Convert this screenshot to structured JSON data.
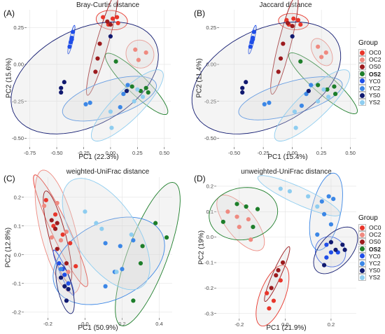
{
  "legend": {
    "title": "Group",
    "groups": [
      {
        "name": "OC0",
        "color": "#e8362b",
        "bold": false
      },
      {
        "name": "OC2",
        "color": "#ef8a80",
        "bold": false
      },
      {
        "name": "OS0",
        "color": "#9c1b1e",
        "bold": false
      },
      {
        "name": "OS2",
        "color": "#1d7e2a",
        "bold": true
      },
      {
        "name": "YC0",
        "color": "#1f4ee8",
        "bold": false
      },
      {
        "name": "YC2",
        "color": "#3c87e6",
        "bold": false
      },
      {
        "name": "YS0",
        "color": "#111a70",
        "bold": false
      },
      {
        "name": "YS2",
        "color": "#8ecdf0",
        "bold": false
      }
    ]
  },
  "chart_data": [
    {
      "type": "scatter",
      "panel_label": "(A)",
      "title": "Bray-Curtis distance",
      "xlabel": "PC1 (22.3%)",
      "ylabel": "PC2 (15.6%)",
      "xlim": [
        -0.78,
        0.56
      ],
      "ylim": [
        -0.56,
        0.37
      ],
      "xticks": [
        -0.75,
        -0.5,
        -0.25,
        0.0,
        0.25,
        0.5
      ],
      "xtick_labels": [
        "-0.75",
        "-0.50",
        "-0.25",
        "0.00",
        "0.25",
        "0.50"
      ],
      "yticks": [
        -0.5,
        -0.25,
        0.0,
        0.25
      ],
      "ytick_labels": [
        "-0.50",
        "-0.25",
        "0.00",
        "0.25"
      ],
      "series": [
        {
          "name": "OC0",
          "points": [
            [
              -0.07,
              0.32
            ],
            [
              0.02,
              0.31
            ],
            [
              0.06,
              0.32
            ],
            [
              0.07,
              0.28
            ],
            [
              -0.02,
              0.27
            ]
          ]
        },
        {
          "name": "OC2",
          "points": [
            [
              0.23,
              0.1
            ],
            [
              0.33,
              0.08
            ],
            [
              0.26,
              0.03
            ]
          ]
        },
        {
          "name": "OS0",
          "points": [
            [
              -0.03,
              0.29
            ],
            [
              0.0,
              0.27
            ],
            [
              -0.1,
              0.14
            ],
            [
              -0.12,
              0.04
            ],
            [
              -0.14,
              -0.05
            ]
          ]
        },
        {
          "name": "OS2",
          "points": [
            [
              0.05,
              0.02
            ],
            [
              0.2,
              -0.15
            ],
            [
              0.28,
              -0.18
            ],
            [
              0.33,
              -0.16
            ],
            [
              0.35,
              -0.19
            ]
          ]
        },
        {
          "name": "YC0",
          "points": [
            [
              -0.35,
              0.22
            ],
            [
              -0.36,
              0.18
            ],
            [
              -0.37,
              0.15
            ],
            [
              -0.38,
              0.12
            ],
            [
              -0.36,
              0.17
            ]
          ]
        },
        {
          "name": "YC2",
          "points": [
            [
              -0.23,
              -0.27
            ],
            [
              -0.19,
              -0.26
            ],
            [
              0.09,
              -0.29
            ],
            [
              0.12,
              -0.2
            ],
            [
              0.16,
              -0.14
            ]
          ]
        },
        {
          "name": "YS0",
          "points": [
            [
              -0.46,
              -0.16
            ],
            [
              -0.46,
              -0.19
            ],
            [
              -0.43,
              -0.12
            ],
            [
              0.0,
              0.19
            ],
            [
              0.15,
              -0.18
            ]
          ]
        },
        {
          "name": "YS2",
          "points": [
            [
              0.0,
              -0.32
            ],
            [
              0.01,
              -0.43
            ],
            [
              0.22,
              -0.25
            ],
            [
              0.25,
              -0.17
            ],
            [
              0.3,
              -0.22
            ]
          ]
        }
      ]
    },
    {
      "type": "scatter",
      "panel_label": "(B)",
      "title": "Jaccard distance",
      "xlabel": "PC1 (15.4%)",
      "ylabel": "PC2 (11.4%)",
      "xlim": [
        -0.63,
        0.55
      ],
      "ylim": [
        -0.56,
        0.37
      ],
      "xticks": [
        -0.5,
        -0.25,
        0.0,
        0.25,
        0.5
      ],
      "xtick_labels": [
        "-0.50",
        "-0.25",
        "0.00",
        "0.25",
        "0.50"
      ],
      "yticks": [
        -0.5,
        -0.25,
        0.0,
        0.25
      ],
      "ytick_labels": [
        "-0.50",
        "-0.25",
        "0.00",
        "0.25"
      ],
      "series": [
        {
          "name": "OC0",
          "points": [
            [
              -0.05,
              0.3
            ],
            [
              0.01,
              0.31
            ],
            [
              0.05,
              0.3
            ],
            [
              0.07,
              0.27
            ],
            [
              -0.03,
              0.27
            ]
          ]
        },
        {
          "name": "OC2",
          "points": [
            [
              0.22,
              0.12
            ],
            [
              0.29,
              0.08
            ],
            [
              0.25,
              0.05
            ]
          ]
        },
        {
          "name": "OS0",
          "points": [
            [
              -0.04,
              0.28
            ],
            [
              0.0,
              0.26
            ],
            [
              -0.08,
              0.14
            ],
            [
              -0.1,
              0.04
            ],
            [
              -0.12,
              -0.05
            ]
          ]
        },
        {
          "name": "OS2",
          "points": [
            [
              0.07,
              0.02
            ],
            [
              0.22,
              -0.14
            ],
            [
              0.3,
              -0.17
            ],
            [
              0.36,
              -0.15
            ],
            [
              0.37,
              -0.2
            ]
          ]
        },
        {
          "name": "YC0",
          "points": [
            [
              -0.33,
              0.22
            ],
            [
              -0.34,
              0.18
            ],
            [
              -0.35,
              0.15
            ],
            [
              -0.36,
              0.12
            ],
            [
              -0.34,
              0.17
            ]
          ]
        },
        {
          "name": "YC2",
          "points": [
            [
              -0.24,
              -0.27
            ],
            [
              -0.2,
              -0.26
            ],
            [
              0.08,
              -0.28
            ],
            [
              0.12,
              -0.2
            ],
            [
              0.16,
              -0.14
            ]
          ]
        },
        {
          "name": "YS0",
          "points": [
            [
              -0.43,
              -0.16
            ],
            [
              -0.43,
              -0.19
            ],
            [
              -0.4,
              -0.12
            ],
            [
              0.0,
              0.19
            ],
            [
              0.14,
              -0.18
            ]
          ]
        },
        {
          "name": "YS2",
          "points": [
            [
              0.02,
              -0.32
            ],
            [
              0.03,
              -0.43
            ],
            [
              0.22,
              -0.25
            ],
            [
              0.27,
              -0.17
            ],
            [
              0.31,
              -0.22
            ]
          ]
        }
      ]
    },
    {
      "type": "scatter",
      "panel_label": "(C)",
      "title": "weighted-UniFrac distance",
      "xlabel": "PC1 (50.9%)",
      "ylabel": "PC2 (12.8%)",
      "xlim": [
        -0.33,
        0.47
      ],
      "ylim": [
        -0.22,
        0.27
      ],
      "xticks": [
        -0.2,
        0.0,
        0.2,
        0.4
      ],
      "xtick_labels": [
        "-0.2",
        "0.0",
        "0.2",
        "0.4"
      ],
      "yticks": [
        -0.2,
        -0.1,
        0.0,
        0.1,
        0.2
      ],
      "ytick_labels": [
        "-0.2",
        "-0.1",
        "0.0",
        "0.1",
        "0.2"
      ],
      "series": [
        {
          "name": "OC0",
          "points": [
            [
              -0.21,
              0.19
            ],
            [
              -0.16,
              0.14
            ],
            [
              -0.17,
              0.1
            ],
            [
              -0.12,
              0.07
            ],
            [
              -0.08,
              0.04
            ],
            [
              -0.05,
              -0.04
            ]
          ]
        },
        {
          "name": "OC2",
          "points": [
            [
              -0.22,
              0.17
            ],
            [
              -0.15,
              0.18
            ],
            [
              -0.1,
              0.08
            ],
            [
              -0.18,
              0.06
            ],
            [
              -0.13,
              0.05
            ],
            [
              -0.09,
              -0.06
            ]
          ]
        },
        {
          "name": "OS0",
          "points": [
            [
              -0.18,
              0.12
            ],
            [
              -0.15,
              0.11
            ],
            [
              -0.16,
              0.09
            ],
            [
              -0.15,
              0.02
            ],
            [
              -0.1,
              -0.03
            ]
          ]
        },
        {
          "name": "OS2",
          "points": [
            [
              0.38,
              0.11
            ],
            [
              0.44,
              0.06
            ],
            [
              0.31,
              0.03
            ],
            [
              0.3,
              -0.03
            ],
            [
              0.26,
              -0.16
            ]
          ]
        },
        {
          "name": "YC0",
          "points": [
            [
              -0.14,
              -0.03
            ],
            [
              -0.12,
              -0.05
            ],
            [
              -0.11,
              -0.07
            ],
            [
              -0.09,
              -0.1
            ]
          ]
        },
        {
          "name": "YC2",
          "points": [
            [
              -0.13,
              -0.05
            ],
            [
              0.11,
              0.04
            ],
            [
              0.19,
              0.03
            ],
            [
              0.26,
              0.05
            ],
            [
              0.16,
              -0.06
            ],
            [
              0.2,
              -0.05
            ],
            [
              0.11,
              -0.11
            ]
          ]
        },
        {
          "name": "YS0",
          "points": [
            [
              -0.13,
              -0.08
            ],
            [
              -0.11,
              -0.11
            ],
            [
              -0.09,
              -0.12
            ],
            [
              -0.1,
              -0.16
            ]
          ]
        },
        {
          "name": "YS2",
          "points": [
            [
              0.0,
              0.15
            ],
            [
              0.06,
              0.11
            ],
            [
              0.09,
              0.09
            ],
            [
              0.25,
              0.07
            ],
            [
              0.17,
              -0.06
            ]
          ]
        }
      ]
    },
    {
      "type": "scatter",
      "panel_label": "(D)",
      "title": "unweighted-UniFrac distance",
      "xlabel": "PC1 (21.9%)",
      "ylabel": "PC2 (19%)",
      "xlim": [
        -0.3,
        0.31
      ],
      "ylim": [
        -0.32,
        0.23
      ],
      "xticks": [
        -0.2,
        0.0,
        0.2
      ],
      "xtick_labels": [
        "-0.2",
        "0.0",
        "0.2"
      ],
      "yticks": [
        -0.3,
        -0.2,
        -0.1,
        0.0,
        0.1,
        0.2
      ],
      "ytick_labels": [
        "-0.3",
        "-0.2",
        "-0.1",
        "0.0",
        "0.1",
        "0.2"
      ],
      "series": [
        {
          "name": "OC0",
          "points": [
            [
              -0.08,
              -0.22
            ],
            [
              -0.05,
              -0.25
            ],
            [
              -0.07,
              -0.28
            ],
            [
              -0.02,
              -0.17
            ]
          ]
        },
        {
          "name": "OC2",
          "points": [
            [
              -0.25,
              0.1
            ],
            [
              -0.21,
              0.08
            ],
            [
              -0.16,
              0.07
            ],
            [
              -0.2,
              0.04
            ],
            [
              -0.15,
              -0.01
            ]
          ]
        },
        {
          "name": "OS0",
          "points": [
            [
              -0.06,
              -0.2
            ],
            [
              -0.03,
              -0.13
            ],
            [
              -0.01,
              -0.1
            ],
            [
              -0.04,
              -0.15
            ]
          ]
        },
        {
          "name": "OS2",
          "points": [
            [
              -0.21,
              0.13
            ],
            [
              -0.17,
              0.12
            ],
            [
              -0.12,
              0.11
            ],
            [
              -0.27,
              0.06
            ],
            [
              -0.14,
              0.04
            ]
          ]
        },
        {
          "name": "YC0",
          "points": [
            [
              0.18,
              -0.03
            ],
            [
              0.2,
              -0.06
            ],
            [
              0.18,
              -0.08
            ],
            [
              0.23,
              -0.06
            ]
          ]
        },
        {
          "name": "YC2",
          "points": [
            [
              0.16,
              0.14
            ],
            [
              0.19,
              0.16
            ],
            [
              0.21,
              0.15
            ],
            [
              0.17,
              0.09
            ],
            [
              0.2,
              0.05
            ],
            [
              0.14,
              0.01
            ]
          ]
        },
        {
          "name": "YS0",
          "points": [
            [
              0.2,
              -0.02
            ],
            [
              0.25,
              -0.03
            ],
            [
              0.26,
              -0.05
            ],
            [
              0.22,
              -0.05
            ],
            [
              0.17,
              -0.11
            ]
          ]
        },
        {
          "name": "YS2",
          "points": [
            [
              -0.02,
              0.19
            ],
            [
              0.02,
              0.18
            ],
            [
              0.1,
              0.16
            ],
            [
              0.14,
              0.12
            ]
          ]
        }
      ]
    }
  ]
}
